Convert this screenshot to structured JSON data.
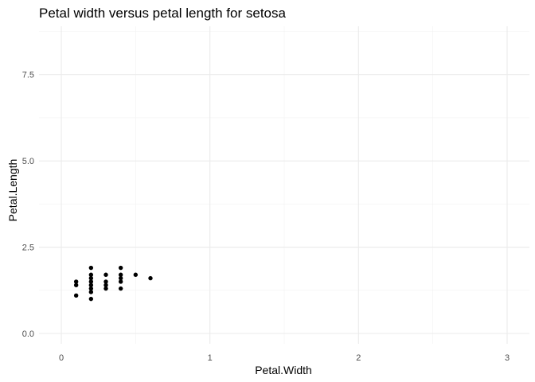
{
  "chart_data": {
    "type": "scatter",
    "title": "Petal width versus petal length for setosa",
    "xlabel": "Petal.Width",
    "ylabel": "Petal.Length",
    "xlim": [
      -0.15,
      3.15
    ],
    "ylim": [
      -0.3,
      8.9
    ],
    "x_ticks": [
      0,
      1,
      2,
      3
    ],
    "x_tick_labels": [
      "0",
      "1",
      "2",
      "3"
    ],
    "x_minor_ticks": [
      0.5,
      1.5,
      2.5
    ],
    "y_ticks": [
      0,
      2.5,
      5,
      7.5
    ],
    "y_tick_labels": [
      "0.0",
      "2.5",
      "5.0",
      "7.5"
    ],
    "y_minor_ticks": [
      1.25,
      3.75,
      6.25,
      8.75
    ],
    "grid": true,
    "point_color": "#000000",
    "points": [
      {
        "x": 0.1,
        "y": 1.1
      },
      {
        "x": 0.1,
        "y": 1.4
      },
      {
        "x": 0.1,
        "y": 1.5
      },
      {
        "x": 0.2,
        "y": 1.0
      },
      {
        "x": 0.2,
        "y": 1.2
      },
      {
        "x": 0.2,
        "y": 1.3
      },
      {
        "x": 0.2,
        "y": 1.4
      },
      {
        "x": 0.2,
        "y": 1.5
      },
      {
        "x": 0.2,
        "y": 1.6
      },
      {
        "x": 0.2,
        "y": 1.7
      },
      {
        "x": 0.2,
        "y": 1.9
      },
      {
        "x": 0.3,
        "y": 1.3
      },
      {
        "x": 0.3,
        "y": 1.4
      },
      {
        "x": 0.3,
        "y": 1.5
      },
      {
        "x": 0.3,
        "y": 1.7
      },
      {
        "x": 0.4,
        "y": 1.3
      },
      {
        "x": 0.4,
        "y": 1.5
      },
      {
        "x": 0.4,
        "y": 1.6
      },
      {
        "x": 0.4,
        "y": 1.7
      },
      {
        "x": 0.4,
        "y": 1.9
      },
      {
        "x": 0.5,
        "y": 1.7
      },
      {
        "x": 0.6,
        "y": 1.6
      }
    ]
  }
}
